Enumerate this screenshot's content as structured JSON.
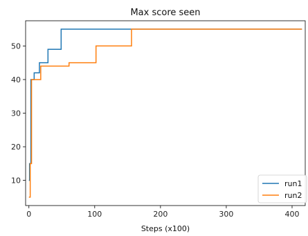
{
  "chart_data": {
    "type": "line",
    "title": "Max score seen",
    "xlabel": "Steps (x100)",
    "ylabel": "",
    "xlim": [
      -5,
      420
    ],
    "ylim": [
      2.5,
      57.5
    ],
    "xticks": [
      0,
      100,
      200,
      300,
      400
    ],
    "yticks": [
      10,
      20,
      30,
      40,
      50
    ],
    "legend_position": "lower-right",
    "series": [
      {
        "name": "run1",
        "color": "#1f77b4",
        "x": [
          0,
          1,
          1,
          3,
          3,
          8,
          8,
          16,
          16,
          29,
          29,
          49,
          49,
          415
        ],
        "y": [
          10,
          10,
          15,
          15,
          40,
          40,
          42,
          42,
          45,
          45,
          49,
          49,
          55,
          55
        ]
      },
      {
        "name": "run2",
        "color": "#ff7f0e",
        "x": [
          0,
          2,
          2,
          4,
          4,
          18,
          18,
          61,
          61,
          102,
          102,
          156,
          156,
          415
        ],
        "y": [
          5,
          5,
          15,
          15,
          40,
          40,
          44,
          44,
          45,
          45,
          50,
          50,
          55,
          55
        ]
      }
    ]
  }
}
